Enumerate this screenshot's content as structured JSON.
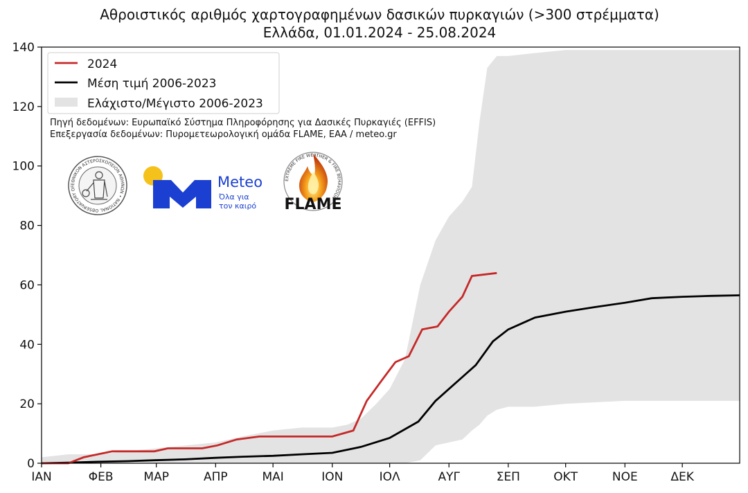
{
  "chart_data": {
    "type": "area",
    "title": "Αθροιστικός αριθμός χαρτογραφημένων δασικών πυρκαγιών (>300 στρέμματα)",
    "subtitle": "Ελλάδα, 01.01.2024 - 25.08.2024",
    "xlabel": "",
    "ylabel": "",
    "ylim": [
      0,
      140
    ],
    "xlim": [
      1,
      366
    ],
    "y_ticks": [
      0,
      20,
      40,
      60,
      80,
      100,
      120,
      140
    ],
    "month_ticks": [
      {
        "label": "ΙΑΝ",
        "day": 1
      },
      {
        "label": "ΦΕΒ",
        "day": 32
      },
      {
        "label": "ΜΑΡ",
        "day": 61
      },
      {
        "label": "ΑΠΡ",
        "day": 92
      },
      {
        "label": "ΜΑΙ",
        "day": 122
      },
      {
        "label": "ΙΟΝ",
        "day": 153
      },
      {
        "label": "ΙΟΛ",
        "day": 183
      },
      {
        "label": "ΑΥΓ",
        "day": 214
      },
      {
        "label": "ΣΕΠ",
        "day": 245
      },
      {
        "label": "ΟΚΤ",
        "day": 275
      },
      {
        "label": "ΝΟΕ",
        "day": 306
      },
      {
        "label": "ΔΕΚ",
        "day": 336
      }
    ],
    "series": [
      {
        "name": "2024",
        "color": "#c62828",
        "x": [
          1,
          15,
          23,
          38,
          60,
          67,
          85,
          93,
          103,
          115,
          130,
          153,
          164,
          171,
          179,
          186,
          193,
          200,
          208,
          214,
          221,
          226,
          239
        ],
        "y": [
          0,
          0,
          2,
          4,
          4,
          5,
          5,
          6,
          8,
          9,
          9,
          9,
          11,
          21,
          28,
          34,
          36,
          45,
          46,
          51,
          56,
          63,
          64
        ]
      },
      {
        "name": "Μέση τιμή 2006-2023",
        "color": "#000000",
        "x": [
          1,
          15,
          30,
          46,
          60,
          76,
          91,
          106,
          122,
          137,
          153,
          168,
          183,
          198,
          207,
          214,
          221,
          228,
          237,
          245,
          259,
          275,
          290,
          306,
          320,
          336,
          351,
          366
        ],
        "y": [
          0,
          0.2,
          0.5,
          0.7,
          1,
          1.3,
          1.8,
          2.2,
          2.5,
          3,
          3.5,
          5.5,
          8.5,
          14,
          21,
          25,
          29,
          33,
          41,
          45,
          49,
          51,
          52.5,
          54,
          55.5,
          56,
          56.3,
          56.5
        ]
      },
      {
        "name": "Ελάχιστο/Μέγιστο 2006-2023",
        "color": "#e3e3e3",
        "x": [
          1,
          15,
          30,
          61,
          92,
          106,
          122,
          137,
          153,
          161,
          168,
          176,
          183,
          191,
          199,
          207,
          214,
          221,
          226,
          230,
          234,
          239,
          245,
          259,
          275,
          306,
          336,
          366
        ],
        "lower": [
          0,
          0,
          0,
          0,
          0,
          0,
          0,
          0,
          0,
          0,
          0,
          0,
          0,
          0,
          1,
          6,
          7,
          8,
          11,
          13,
          16,
          18,
          19,
          19,
          20,
          21,
          21,
          21
        ],
        "upper": [
          2,
          3,
          3,
          5,
          7,
          9,
          11,
          12,
          12,
          13,
          15,
          20,
          25,
          35,
          60,
          75,
          83,
          88,
          93,
          115,
          133,
          137,
          137,
          138,
          139,
          139,
          139,
          139
        ]
      }
    ],
    "legend": {
      "placement": "top-left",
      "entries": [
        "2024",
        "Μέση τιμή 2006-2023",
        "Ελάχιστο/Μέγιστο 2006-2023"
      ]
    },
    "annotations": [
      "Πηγή δεδομένων: Ευρωπαϊκό Σύστημα Πληροφόρησης για Δασικές Πυρκαγιές (EFFIS)",
      "Επεξεργασία δεδομένων: Πυρομετεωρολογική ομάδα FLAME, ΕΑΑ / meteo.gr"
    ],
    "grid": false
  },
  "logos": {
    "noa": {
      "ring_text": "ΕΘΝΙΚΟΝ ΑΣΤΕΡΟΣΚΟΠΕΙΟΝ ΑΘΗΝΩΝ • NATIONAL OBSERVATORY OF ATHENS"
    },
    "meteo": {
      "name": "Meteo",
      "tagline_1": "Όλα για",
      "tagline_2": "τον καιρό",
      "blue": "#1a3fd1",
      "yellow": "#f5c21b"
    },
    "flame": {
      "name": "FLAME",
      "ring_text": "EXTREME FIRE WEATHER & FIRE BEHAVIOUR"
    }
  }
}
